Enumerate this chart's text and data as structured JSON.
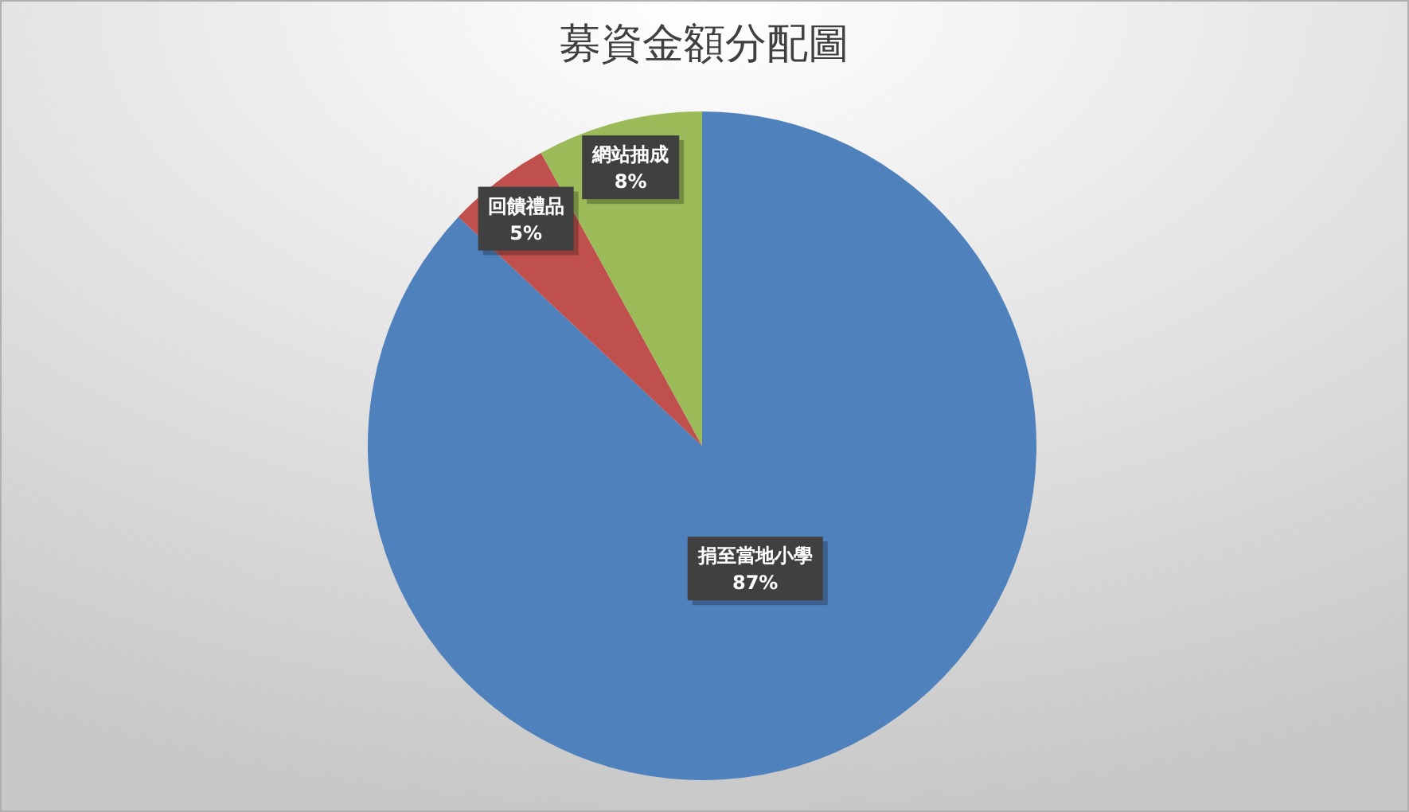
{
  "chart_data": {
    "type": "pie",
    "title": "募資金額分配圖",
    "categories": [
      "捐至當地小學",
      "回饋禮品",
      "網站抽成"
    ],
    "values": [
      87,
      5,
      8
    ],
    "colors": [
      "#4f81bd",
      "#c0504d",
      "#9bbb59"
    ],
    "value_labels": [
      "87%",
      "5%",
      "8%"
    ]
  }
}
